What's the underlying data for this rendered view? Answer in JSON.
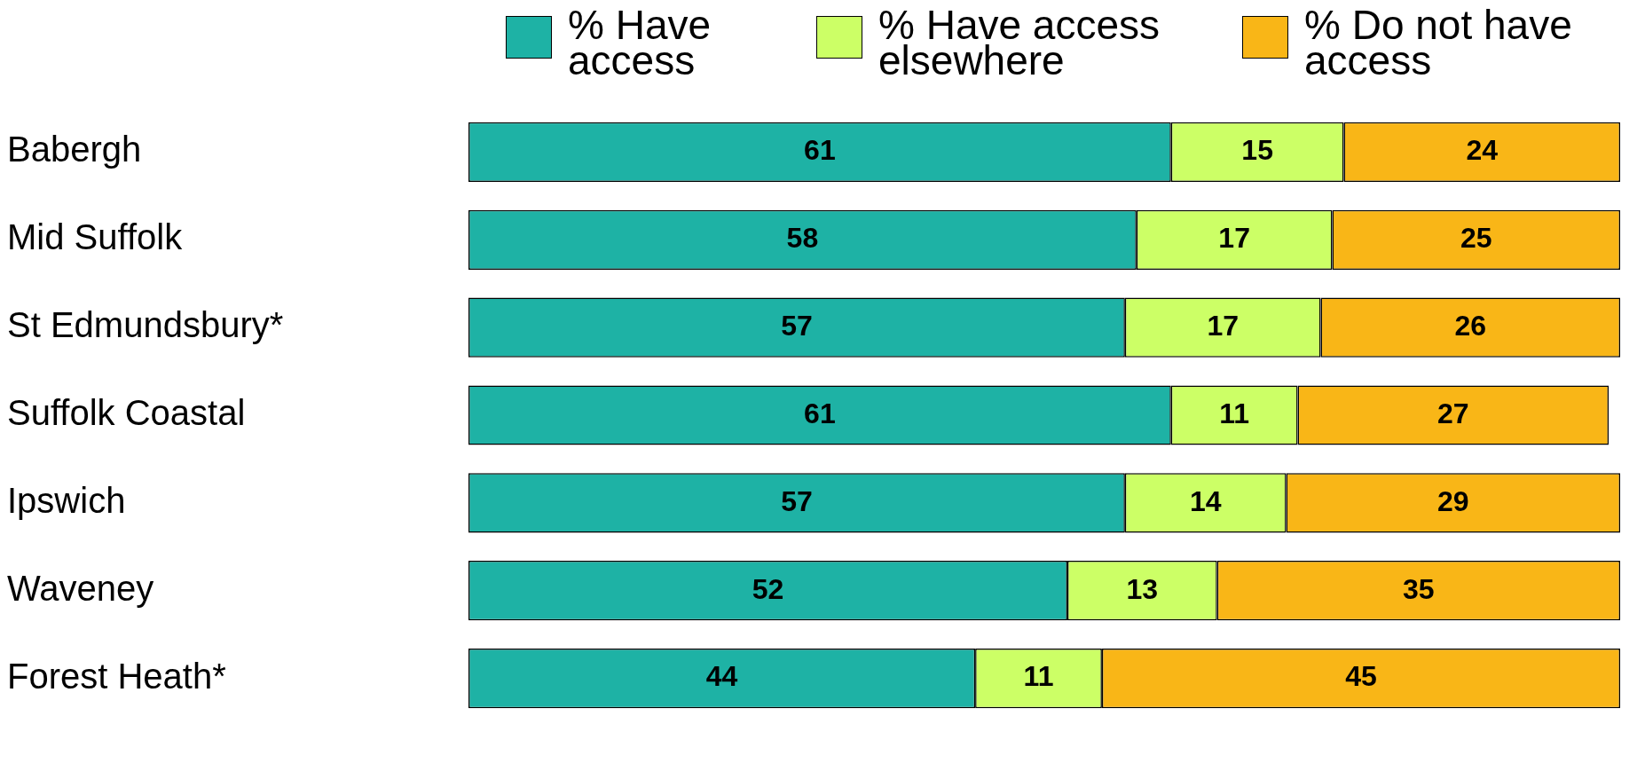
{
  "chart_data": {
    "type": "bar",
    "orientation": "horizontal",
    "stacked": true,
    "tick_labels": "y",
    "data_labels": true,
    "legend": "top right",
    "categories": [
      "Babergh",
      "Mid Suffolk",
      "St Edmundsbury*",
      "Suffolk Coastal",
      "Ipswich",
      "Waveney",
      "Forest Heath*"
    ],
    "series": [
      {
        "name": "% Have access",
        "color": "#1eb2a5",
        "values": [
          61,
          58,
          57,
          61,
          57,
          52,
          44
        ]
      },
      {
        "name": "% Have access elsewhere",
        "color": "#ccff66",
        "values": [
          15,
          17,
          17,
          11,
          14,
          13,
          11
        ]
      },
      {
        "name": "% Do not have access",
        "color": "#f9b617",
        "values": [
          24,
          25,
          26,
          27,
          29,
          35,
          45
        ]
      }
    ]
  }
}
